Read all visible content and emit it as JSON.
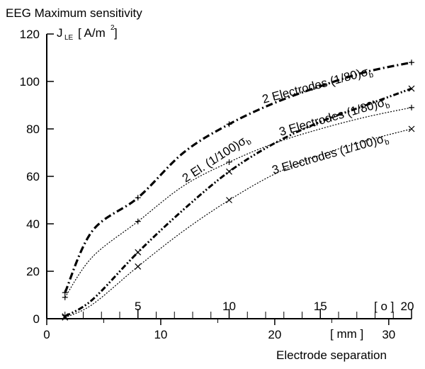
{
  "chart_data": {
    "type": "line",
    "title": "EEG Maximum sensitivity",
    "ylabel": {
      "symbol": "J",
      "subscript": "LE",
      "unit_open": "[ A/m",
      "unit_power": "2",
      "unit_close": " ]"
    },
    "xlabel": "Electrode separation",
    "x_mm_unit": "[ mm ]",
    "x_deg_unit": "[ o ]",
    "ylim": [
      0,
      120
    ],
    "xlim_mm": [
      0,
      32
    ],
    "y_ticks": [
      0,
      20,
      40,
      60,
      80,
      100,
      120
    ],
    "x_ticks_mm": [
      0,
      10,
      20,
      30
    ],
    "x_ticks_mm_labels": [
      "0",
      "10",
      "20",
      "30"
    ],
    "x_ticks_deg": [
      5,
      10,
      15,
      20
    ],
    "x_ticks_deg_labels": [
      "5",
      "10",
      "15",
      "20"
    ],
    "x_deg_minor_ticks_mm": [
      1.6,
      3.2,
      4.8,
      6.4,
      9.6,
      11.2,
      12.8,
      14.4,
      17.6,
      19.2,
      20.8,
      22.4,
      25.6,
      27.2,
      28.8,
      30.4
    ],
    "mm_per_degree": 1.6,
    "series": [
      {
        "name": "2 Electrodes (1/80)σb",
        "label_main": "2 Electrodes  (1/80)σ",
        "label_sub": "b",
        "style": "dash-dot-heavy",
        "marker": "plus",
        "x": [
          1.6,
          4,
          8,
          12,
          16,
          20,
          24,
          28,
          32
        ],
        "y": [
          11,
          37,
          51,
          70,
          82,
          91,
          98,
          104,
          108
        ],
        "marker_x": [
          1.6,
          8,
          16,
          32
        ],
        "marker_y": [
          11,
          51,
          82,
          108
        ]
      },
      {
        "name": "2 El. (1/100)σb",
        "label_main": "2 El. (1/100)σ",
        "label_sub": "b",
        "style": "dotted-thin",
        "marker": "plus",
        "x": [
          1.6,
          4,
          8,
          12,
          16,
          20,
          24,
          28,
          32
        ],
        "y": [
          9,
          26,
          41,
          56,
          66,
          74,
          80,
          85,
          89
        ],
        "marker_x": [
          1.6,
          8,
          16,
          32
        ],
        "marker_y": [
          9,
          41,
          66,
          89
        ]
      },
      {
        "name": "3 Electrodes (1/80)σb",
        "label_main": "3 Electrodes (1/80)σ",
        "label_sub": "b",
        "style": "dash-dot-dot-heavy",
        "marker": "cross",
        "x": [
          1.6,
          4,
          8,
          12,
          16,
          20,
          24,
          28,
          32
        ],
        "y": [
          1,
          8,
          28,
          46,
          62,
          74,
          83,
          90,
          97
        ],
        "marker_x": [
          1.6,
          8,
          16,
          32
        ],
        "marker_y": [
          1,
          28,
          62,
          97
        ]
      },
      {
        "name": "3 Electrodes (1/100)σb",
        "label_main": "3 Electrodes (1/100)σ",
        "label_sub": "b",
        "style": "dotted-thin",
        "marker": "cross",
        "x": [
          1.6,
          4,
          8,
          12,
          16,
          20,
          24,
          28,
          32
        ],
        "y": [
          0.5,
          6,
          22,
          37,
          50,
          61,
          69,
          75,
          80
        ],
        "marker_x": [
          1.6,
          8,
          16,
          32
        ],
        "marker_y": [
          0.5,
          22,
          50,
          80
        ]
      }
    ]
  }
}
